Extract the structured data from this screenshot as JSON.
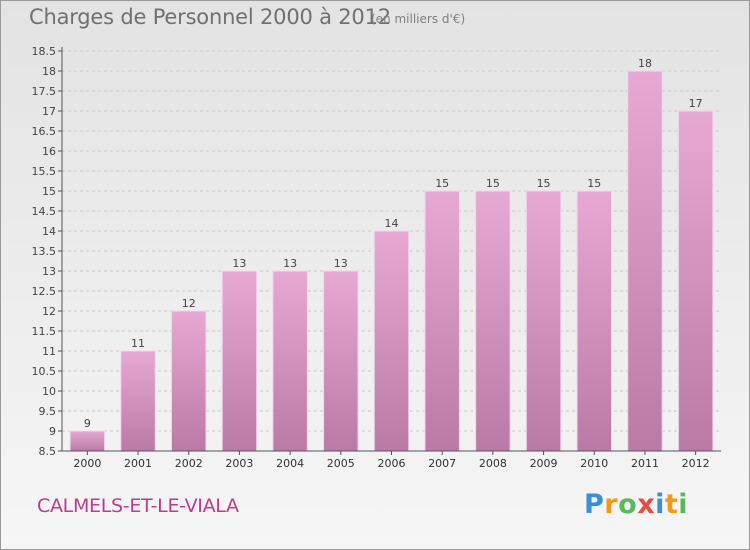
{
  "header": {
    "title": "Charges de Personnel 2000 à 2012",
    "subtitle": "(en milliers d'€)"
  },
  "footer": {
    "commune": "CALMELS-ET-LE-VIALA",
    "logo_letters": [
      "P",
      "r",
      "o",
      "x",
      "i",
      "t",
      "i"
    ],
    "logo_colors": [
      "#3a8fd8",
      "#f39c12",
      "#5cb85c",
      "#e74c3c",
      "#3a8fd8",
      "#f39c12",
      "#5cb85c"
    ]
  },
  "colors": {
    "bar_top": "#e7a9d4",
    "bar_bottom": "#b97ba6",
    "bar_edge": "#f3d6ea",
    "axis": "#555555",
    "grid": "#c8c8c8",
    "title": "#707070",
    "commune": "#c23a8c"
  },
  "chart_data": {
    "type": "bar",
    "title": "Charges de Personnel 2000 à 2012",
    "subtitle": "(en milliers d'€)",
    "categories": [
      "2000",
      "2001",
      "2002",
      "2003",
      "2004",
      "2005",
      "2006",
      "2007",
      "2008",
      "2009",
      "2010",
      "2011",
      "2012"
    ],
    "values": [
      9,
      11,
      12,
      13,
      13,
      13,
      14,
      15,
      15,
      15,
      15,
      18,
      17
    ],
    "ylim": [
      8.5,
      18.5
    ],
    "yticks": [
      8.5,
      9,
      9.5,
      10,
      10.5,
      11,
      11.5,
      12,
      12.5,
      13,
      13.5,
      14,
      14.5,
      15,
      15.5,
      16,
      16.5,
      17,
      17.5,
      18,
      18.5
    ],
    "ytick_labels": [
      "8.5",
      "9",
      "9.5",
      "10",
      "10.5",
      "11",
      "11.5",
      "12",
      "12.5",
      "13",
      "13.5",
      "14",
      "14.5",
      "15",
      "15.5",
      "16",
      "16.5",
      "17",
      "17.5",
      "18",
      "18.5"
    ],
    "grid": "horizontal-dashed",
    "xlabel": "",
    "ylabel": ""
  }
}
